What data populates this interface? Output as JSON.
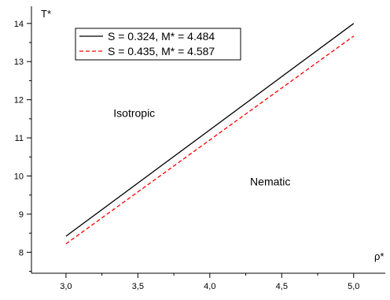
{
  "chart_data": {
    "type": "line",
    "xlabel": "ρ*",
    "ylabel": "T*",
    "xlim": [
      2.76,
      5.22
    ],
    "ylim": [
      7.45,
      14.45
    ],
    "x_ticks": [
      3.0,
      3.5,
      4.0,
      4.5,
      5.0
    ],
    "x_tick_labels": [
      "3,0",
      "3,5",
      "4,0",
      "4,5",
      "5,0"
    ],
    "x_minor_ticks": [
      2.75,
      3.25,
      3.75,
      4.25,
      4.75
    ],
    "y_ticks": [
      8,
      9,
      10,
      11,
      12,
      13,
      14
    ],
    "y_tick_labels": [
      "8",
      "9",
      "10",
      "11",
      "12",
      "13",
      "14"
    ],
    "y_minor_ticks": [
      7.5,
      8.5,
      9.5,
      10.5,
      11.5,
      12.5,
      13.5
    ],
    "grid": false,
    "legend_position": "top-left",
    "series": [
      {
        "name": "S = 0.324, M* = 4.484",
        "color": "#000000",
        "dash": "solid",
        "x": [
          3.0,
          5.0
        ],
        "y": [
          8.42,
          14.0
        ]
      },
      {
        "name": "S = 0.435, M* = 4.587",
        "color": "#ff0000",
        "dash": "dashed",
        "x": [
          3.0,
          5.0
        ],
        "y": [
          8.22,
          13.67
        ]
      }
    ],
    "annotations": [
      {
        "text": "Isotropic",
        "x": 3.33,
        "y": 11.55
      },
      {
        "text": "Nematic",
        "x": 4.28,
        "y": 9.75
      }
    ]
  }
}
